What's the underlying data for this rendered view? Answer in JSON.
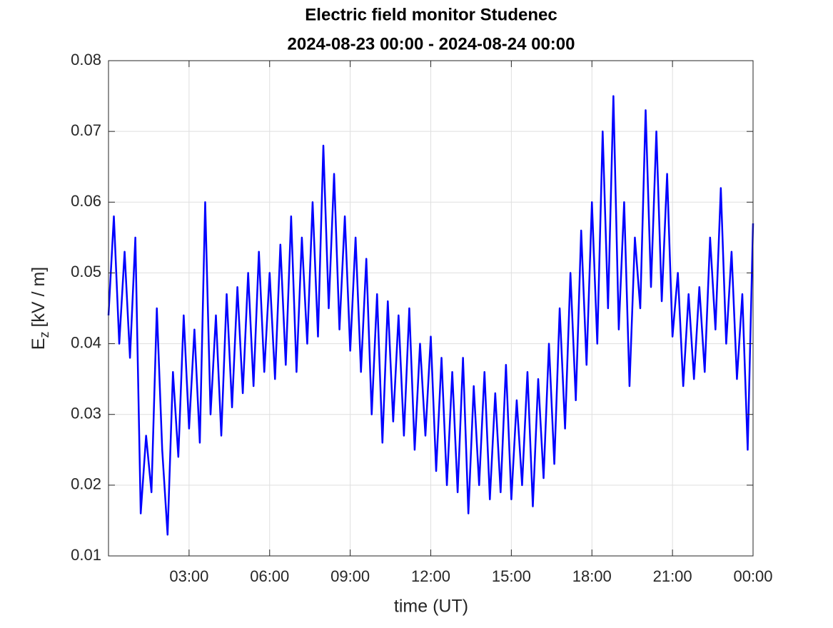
{
  "chart_data": {
    "type": "line",
    "title": "Electric field monitor Studenec",
    "subtitle": "2024-08-23 00:00 - 2024-08-24 00:00",
    "xlabel": "time (UT)",
    "ylabel_symbol": "E",
    "ylabel_subscript": "z",
    "ylabel_unit": "[kV / m]",
    "xlim": [
      0,
      24
    ],
    "ylim": [
      0.01,
      0.08
    ],
    "xticks": [
      {
        "value": 3,
        "label": "03:00"
      },
      {
        "value": 6,
        "label": "06:00"
      },
      {
        "value": 9,
        "label": "09:00"
      },
      {
        "value": 12,
        "label": "12:00"
      },
      {
        "value": 15,
        "label": "15:00"
      },
      {
        "value": 18,
        "label": "18:00"
      },
      {
        "value": 21,
        "label": "21:00"
      },
      {
        "value": 24,
        "label": "00:00"
      }
    ],
    "yticks": [
      0.01,
      0.02,
      0.03,
      0.04,
      0.05,
      0.06,
      0.07,
      0.08
    ],
    "grid": true,
    "x": [
      0,
      0.2,
      0.4,
      0.6,
      0.8,
      1,
      1.2,
      1.4,
      1.6,
      1.8,
      2,
      2.2,
      2.4,
      2.6,
      2.8,
      3,
      3.2,
      3.4,
      3.6,
      3.8,
      4,
      4.2,
      4.4,
      4.6,
      4.8,
      5,
      5.2,
      5.4,
      5.6,
      5.8,
      6,
      6.2,
      6.4,
      6.6,
      6.8,
      7,
      7.2,
      7.4,
      7.6,
      7.8,
      8,
      8.2,
      8.4,
      8.6,
      8.8,
      9,
      9.2,
      9.4,
      9.6,
      9.8,
      10,
      10.2,
      10.4,
      10.6,
      10.8,
      11,
      11.2,
      11.4,
      11.6,
      11.8,
      12,
      12.2,
      12.4,
      12.6,
      12.8,
      13,
      13.2,
      13.4,
      13.6,
      13.8,
      14,
      14.2,
      14.4,
      14.6,
      14.8,
      15,
      15.2,
      15.4,
      15.6,
      15.8,
      16,
      16.2,
      16.4,
      16.6,
      16.8,
      17,
      17.2,
      17.4,
      17.6,
      17.8,
      18,
      18.2,
      18.4,
      18.6,
      18.8,
      19,
      19.2,
      19.4,
      19.6,
      19.8,
      20,
      20.2,
      20.4,
      20.6,
      20.8,
      21,
      21.2,
      21.4,
      21.6,
      21.8,
      22,
      22.2,
      22.4,
      22.6,
      22.8,
      23,
      23.2,
      23.4,
      23.6,
      23.8,
      24
    ],
    "series": [
      {
        "color": "#0000ff",
        "values": [
          0.044,
          0.058,
          0.04,
          0.053,
          0.038,
          0.055,
          0.016,
          0.027,
          0.019,
          0.045,
          0.025,
          0.013,
          0.036,
          0.024,
          0.044,
          0.028,
          0.042,
          0.026,
          0.06,
          0.03,
          0.044,
          0.027,
          0.047,
          0.031,
          0.048,
          0.033,
          0.05,
          0.034,
          0.053,
          0.036,
          0.05,
          0.035,
          0.054,
          0.037,
          0.058,
          0.036,
          0.055,
          0.04,
          0.06,
          0.041,
          0.068,
          0.045,
          0.064,
          0.042,
          0.058,
          0.039,
          0.055,
          0.036,
          0.052,
          0.03,
          0.047,
          0.026,
          0.046,
          0.029,
          0.044,
          0.027,
          0.045,
          0.025,
          0.04,
          0.027,
          0.041,
          0.022,
          0.038,
          0.02,
          0.036,
          0.019,
          0.038,
          0.016,
          0.034,
          0.02,
          0.036,
          0.018,
          0.033,
          0.019,
          0.037,
          0.018,
          0.032,
          0.02,
          0.036,
          0.017,
          0.035,
          0.021,
          0.04,
          0.023,
          0.045,
          0.028,
          0.05,
          0.032,
          0.056,
          0.037,
          0.06,
          0.04,
          0.07,
          0.045,
          0.075,
          0.042,
          0.06,
          0.034,
          0.055,
          0.045,
          0.073,
          0.048,
          0.07,
          0.046,
          0.064,
          0.041,
          0.05,
          0.034,
          0.047,
          0.035,
          0.048,
          0.036,
          0.055,
          0.042,
          0.062,
          0.04,
          0.053,
          0.035,
          0.047,
          0.025,
          0.057
        ]
      }
    ]
  }
}
